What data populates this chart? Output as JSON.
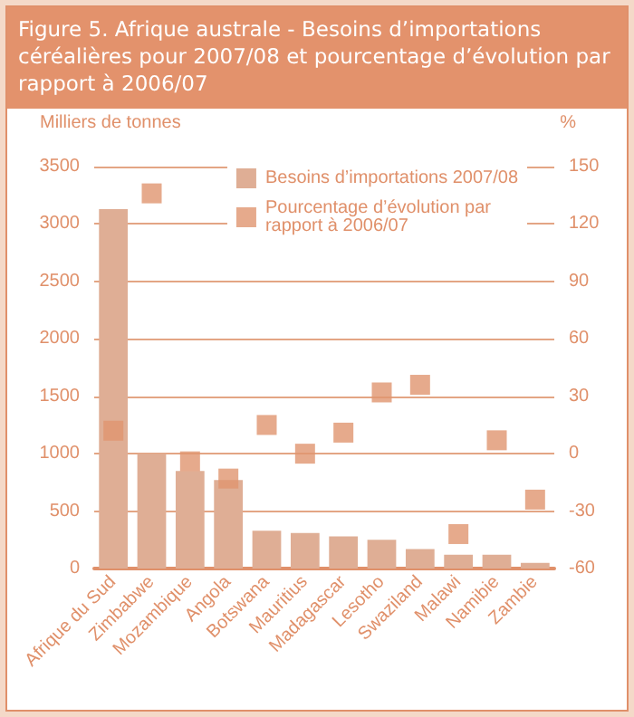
{
  "chart_data": {
    "type": "bar",
    "title": "Figure 5. Afrique australe - Besoins d’importations céréalières pour 2007/08 et pourcentage d’évolution par rapport à 2006/07",
    "ylabel": "Milliers de tonnes",
    "y2label": "%",
    "categories": [
      "Afrique du Sud",
      "Zimbabwe",
      "Mozambique",
      "Angola",
      "Botswana",
      "Mauritius",
      "Madagascar",
      "Lesotho",
      "Swaziland",
      "Malawi",
      "Namibie",
      "Zambie"
    ],
    "series": [
      {
        "name": "Besoins d’importations 2007/08",
        "color": "#dfae95",
        "values": [
          3130,
          1000,
          850,
          770,
          330,
          310,
          280,
          250,
          170,
          120,
          120,
          50
        ]
      },
      {
        "name": "Pourcentage d’évolution par rapport à 2006/07",
        "type": "scatter",
        "axis": "y2",
        "color": "#e0956f",
        "marker": "square",
        "values": [
          12,
          136,
          -4,
          -13,
          15,
          0,
          11,
          32,
          36,
          -42,
          7,
          -24
        ]
      }
    ],
    "ylim": [
      0,
      3500
    ],
    "yticks": [
      0,
      500,
      1000,
      1500,
      2000,
      2500,
      3000,
      3500
    ],
    "y2lim": [
      -60,
      150
    ],
    "y2ticks": [
      -60,
      -30,
      0,
      30,
      60,
      90,
      120,
      150
    ],
    "grid": "y",
    "legend": "top right"
  }
}
